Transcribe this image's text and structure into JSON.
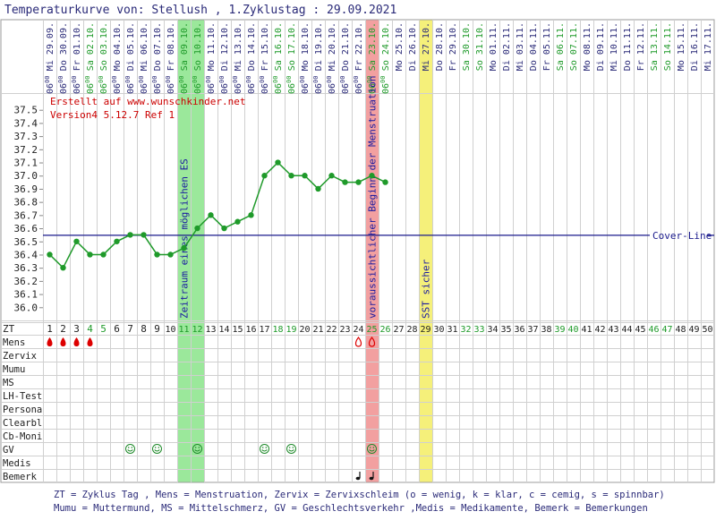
{
  "chart_data": {
    "type": "line",
    "title": "Temperaturkurve von: Stellush , 1.Zyklustag : 29.09.2021",
    "credit_line1": "Erstellt auf www.wunschkinder.net",
    "credit_line2": "Version4 5.12.7 Ref 1",
    "dates": [
      "Mi 29.09.",
      "Do 30.09.",
      "Fr 01.10.",
      "Sa 02.10.",
      "So 03.10.",
      "Mo 04.10.",
      "Di 05.10.",
      "Mi 06.10.",
      "Do 07.10.",
      "Fr 08.10.",
      "Sa 09.10.",
      "So 10.10.",
      "Mo 11.10.",
      "Di 12.10.",
      "Mi 13.10.",
      "Do 14.10.",
      "Fr 15.10.",
      "Sa 16.10.",
      "So 17.10.",
      "Mo 18.10.",
      "Di 19.10.",
      "Mi 20.10.",
      "Do 21.10.",
      "Fr 22.10.",
      "Sa 23.10.",
      "So 24.10.",
      "Mo 25.10.",
      "Di 26.10.",
      "Mi 27.10.",
      "Do 28.10.",
      "Fr 29.10.",
      "Sa 30.10.",
      "So 31.10.",
      "Mo 01.11.",
      "Di 02.11.",
      "Mi 03.11.",
      "Do 04.11.",
      "Fr 05.11.",
      "Sa 06.11.",
      "So 07.11.",
      "Mo 08.11.",
      "Di 09.11.",
      "Mi 10.11.",
      "Do 11.11.",
      "Fr 12.11.",
      "Sa 13.11.",
      "So 14.11.",
      "Mo 15.11.",
      "Di 16.11.",
      "Mi 17.11."
    ],
    "weekend_days": [
      4,
      5,
      11,
      12,
      18,
      19,
      25,
      26,
      32,
      33,
      39,
      40,
      46,
      47
    ],
    "time_label": "06",
    "time_label_sup": "00",
    "times_until_day": 26,
    "temperatures": [
      36.4,
      36.3,
      36.5,
      36.4,
      36.4,
      36.5,
      36.55,
      36.55,
      36.4,
      36.4,
      36.45,
      36.6,
      36.7,
      36.6,
      36.65,
      36.7,
      37.0,
      37.1,
      37.0,
      37.0,
      36.9,
      37.0,
      36.95,
      36.95,
      37.0,
      36.95
    ],
    "y_ticks": [
      37.5,
      37.4,
      37.3,
      37.2,
      37.1,
      37.0,
      36.9,
      36.8,
      36.7,
      36.6,
      36.5,
      36.4,
      36.3,
      36.2,
      36.1,
      36.0
    ],
    "ylim": [
      35.9,
      37.6
    ],
    "cover_line": 36.55,
    "cover_line_label": "Cover-Line",
    "fertile_window": {
      "start": 11,
      "end": 12,
      "label": "Zeitraum eines möglichen ES"
    },
    "expected_period": {
      "day": 25,
      "label": "voraussichtlicher Beginn der Menstruation"
    },
    "sst_day": {
      "day": 29,
      "label": "SST sicher"
    },
    "zt_label": "ZT",
    "row_labels": [
      "Mens",
      "Zervix",
      "Mumu",
      "MS",
      "LH-Test",
      "Persona",
      "Clearbl",
      "Cb-Moni",
      "GV",
      "Medis",
      "Bemerk"
    ],
    "mens_full_days": [
      1,
      2,
      3,
      4
    ],
    "mens_spot_days": [
      24,
      25
    ],
    "gv_days": [
      7,
      9,
      12,
      17,
      19,
      25
    ],
    "bemerk_days": [
      24,
      25
    ],
    "legend_line1": "ZT = Zyklus Tag , Mens = Menstruation, Zervix = Zervixschleim (o = wenig, k = klar, c = cemig, s = spinnbar)",
    "legend_line2": "Mumu = Muttermund, MS = Mittelschmerz, GV = Geschlechtsverkehr ,Medis = Medikamente, Bemerk = Bemerkungen",
    "colors": {
      "line": "#1f9a2a",
      "cover": "#1a1a8c",
      "weekend": "#1f9a2a",
      "text": "#2a2a78",
      "credit": "#cc0000",
      "fertile": "#9be89b",
      "period": "#f2a0a0",
      "sst": "#f5f07a",
      "grid": "#d0d0d0",
      "mens": "#dd0000"
    }
  }
}
